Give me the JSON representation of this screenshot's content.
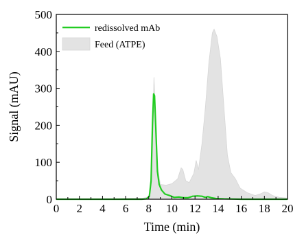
{
  "chart_data": {
    "type": "area",
    "title": "",
    "xlabel": "Time (min)",
    "ylabel": "Signal (mAU)",
    "xlim": [
      0,
      20
    ],
    "ylim": [
      0,
      500
    ],
    "x_ticks": [
      0,
      2,
      4,
      6,
      8,
      10,
      12,
      14,
      16,
      18,
      20
    ],
    "y_ticks": [
      0,
      100,
      200,
      300,
      400,
      500
    ],
    "grid": false,
    "legend_position": "top-left",
    "series": [
      {
        "name": "Feed (ATPE)",
        "style": "filled-area",
        "color": "#e3e3e3",
        "points": [
          [
            0,
            0
          ],
          [
            5.2,
            0
          ],
          [
            5.6,
            2
          ],
          [
            6.5,
            3
          ],
          [
            7.5,
            3
          ],
          [
            8.0,
            6
          ],
          [
            8.2,
            40
          ],
          [
            8.35,
            200
          ],
          [
            8.45,
            330
          ],
          [
            8.55,
            260
          ],
          [
            8.7,
            100
          ],
          [
            9.0,
            40
          ],
          [
            9.5,
            38
          ],
          [
            10.0,
            42
          ],
          [
            10.5,
            55
          ],
          [
            10.8,
            85
          ],
          [
            10.95,
            80
          ],
          [
            11.2,
            50
          ],
          [
            11.5,
            45
          ],
          [
            11.9,
            70
          ],
          [
            12.1,
            105
          ],
          [
            12.3,
            80
          ],
          [
            12.6,
            150
          ],
          [
            12.9,
            250
          ],
          [
            13.2,
            370
          ],
          [
            13.5,
            450
          ],
          [
            13.65,
            460
          ],
          [
            13.9,
            440
          ],
          [
            14.2,
            380
          ],
          [
            14.5,
            250
          ],
          [
            14.8,
            120
          ],
          [
            15.1,
            72
          ],
          [
            15.5,
            55
          ],
          [
            15.9,
            30
          ],
          [
            16.5,
            18
          ],
          [
            17.2,
            10
          ],
          [
            17.7,
            15
          ],
          [
            18.0,
            20
          ],
          [
            18.3,
            18
          ],
          [
            18.7,
            10
          ],
          [
            19.3,
            5
          ],
          [
            20,
            3
          ]
        ]
      },
      {
        "name": "redissolved mAb",
        "style": "line",
        "color": "#22cc22",
        "points": [
          [
            0,
            0
          ],
          [
            7.4,
            0
          ],
          [
            7.8,
            1
          ],
          [
            8.05,
            8
          ],
          [
            8.2,
            50
          ],
          [
            8.32,
            200
          ],
          [
            8.42,
            285
          ],
          [
            8.5,
            280
          ],
          [
            8.6,
            200
          ],
          [
            8.75,
            75
          ],
          [
            8.9,
            40
          ],
          [
            9.1,
            25
          ],
          [
            9.4,
            14
          ],
          [
            9.8,
            10
          ],
          [
            10.2,
            5
          ],
          [
            10.6,
            6
          ],
          [
            11.0,
            4
          ],
          [
            11.4,
            4
          ],
          [
            11.8,
            8
          ],
          [
            12.2,
            9
          ],
          [
            12.6,
            8
          ],
          [
            12.9,
            5
          ],
          [
            13.1,
            7
          ],
          [
            13.4,
            4
          ],
          [
            13.8,
            2
          ],
          [
            14.5,
            1
          ],
          [
            16,
            0
          ],
          [
            20,
            0
          ]
        ]
      }
    ]
  }
}
